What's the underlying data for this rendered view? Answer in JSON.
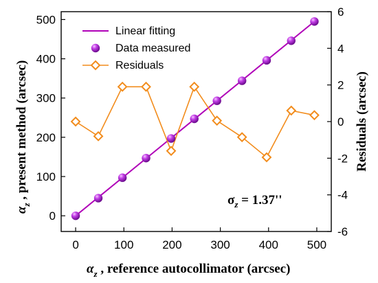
{
  "chart_data": {
    "type": "line",
    "x": [
      0,
      47,
      97,
      146,
      198,
      246,
      293,
      345,
      396,
      447,
      495
    ],
    "xlim": [
      -30,
      530
    ],
    "xticks": [
      "0",
      "100",
      "200",
      "300",
      "400",
      "500"
    ],
    "x_label": {
      "var": "α",
      "sub": "z",
      "text": " , reference autocollimator (arcsec)"
    },
    "left_axis": {
      "ylim": [
        -40,
        520
      ],
      "ticks": [
        "0",
        "100",
        "200",
        "300",
        "400",
        "500"
      ],
      "label": {
        "var": "α",
        "sub": "z",
        "text": " , present method (arcsec)"
      }
    },
    "right_axis": {
      "ylim": [
        -6,
        6
      ],
      "ticks": [
        "-6",
        "-4",
        "-2",
        "0",
        "2",
        "4",
        "6"
      ],
      "label": "Residuals (arcsec)"
    },
    "series": [
      {
        "name": "Linear fitting",
        "kind": "line",
        "axis": "left",
        "color": "#b000b8",
        "x": [
          0,
          495
        ],
        "y": [
          0,
          495
        ]
      },
      {
        "name": "Data measured",
        "kind": "scatter",
        "axis": "left",
        "color": "#a21ad6",
        "y": [
          0,
          45,
          97,
          147,
          197,
          247,
          293,
          344,
          396,
          446,
          495
        ]
      },
      {
        "name": "Residuals",
        "kind": "line-markers",
        "axis": "right",
        "color": "#f28c1c",
        "y": [
          0.0,
          -0.8,
          1.9,
          1.9,
          -1.6,
          1.9,
          0.05,
          -0.85,
          -1.95,
          0.6,
          0.35
        ]
      }
    ],
    "annotation": {
      "base": "σ",
      "sub": "z",
      "text": " = 1.37''"
    },
    "legend_position": "top-left",
    "grid": false
  }
}
